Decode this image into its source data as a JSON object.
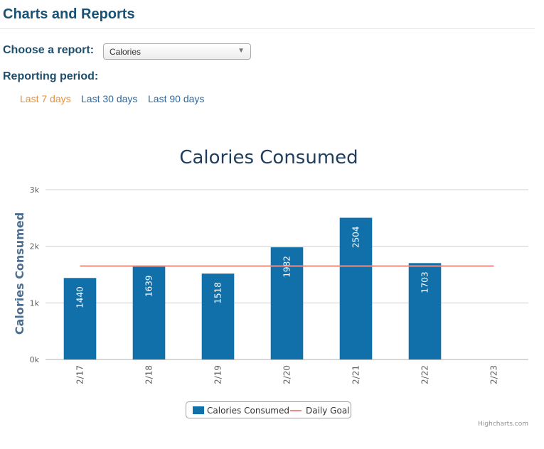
{
  "header": {
    "title": "Charts and Reports"
  },
  "report": {
    "label": "Choose a report:",
    "selected": "Calories"
  },
  "period": {
    "label": "Reporting period:",
    "options": [
      "Last 7 days",
      "Last 30 days",
      "Last 90 days"
    ],
    "active": "Last 7 days"
  },
  "colors": {
    "bar": "#1170aa",
    "goal": "#f08c80",
    "active_link": "#e8903a",
    "link": "#2a6aa3"
  },
  "chart_data": {
    "type": "bar",
    "title": "Calories Consumed",
    "xlabel": "",
    "ylabel": "Calories Consumed",
    "categories": [
      "2/17",
      "2/18",
      "2/19",
      "2/20",
      "2/21",
      "2/22",
      "2/23"
    ],
    "series": [
      {
        "name": "Calories Consumed",
        "type": "bar",
        "values": [
          1440,
          1639,
          1518,
          1982,
          2504,
          1703,
          null
        ]
      },
      {
        "name": "Daily Goal",
        "type": "line",
        "values": [
          1650,
          1650,
          1650,
          1650,
          1650,
          1650,
          1650
        ]
      }
    ],
    "ylim": [
      0,
      3000
    ],
    "yticks": [
      "0k",
      "1k",
      "2k",
      "3k"
    ],
    "grid": true,
    "legend_position": "bottom"
  },
  "credits": "Highcharts.com"
}
